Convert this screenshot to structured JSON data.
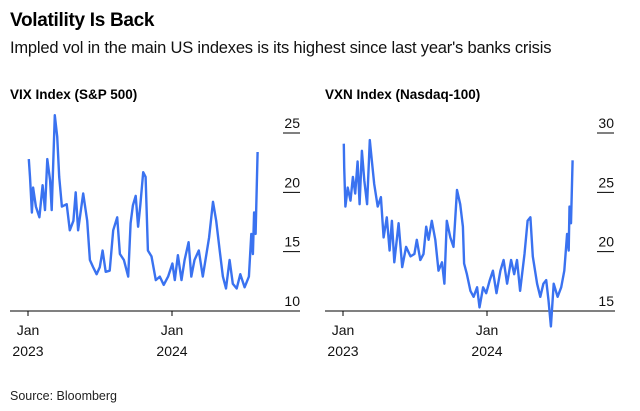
{
  "title": "Volatility Is Back",
  "subtitle": "Impled vol in the main US indexes is its highest since last year's banks crisis",
  "source": "Source: Bloomberg",
  "colors": {
    "line": "#3a72f0",
    "axis": "#000000"
  },
  "chart_data": [
    {
      "type": "line",
      "title": "VIX Index (S&P 500)",
      "ylim": [
        10,
        25
      ],
      "yticks": [
        10,
        15,
        20,
        25
      ],
      "xticks": [
        {
          "date": "2023-01-01",
          "label1": "Jan",
          "label2": "2023"
        },
        {
          "date": "2024-01-01",
          "label1": "Jan",
          "label2": "2024"
        }
      ],
      "xlim": [
        "2022-12-01",
        "2024-10-20"
      ],
      "grid": false,
      "y_axis_side": "right",
      "points": [
        [
          "2023-01-03",
          22.8
        ],
        [
          "2023-01-06",
          21.3
        ],
        [
          "2023-01-11",
          18.3
        ],
        [
          "2023-01-14",
          20.4
        ],
        [
          "2023-01-21",
          18.8
        ],
        [
          "2023-01-30",
          17.9
        ],
        [
          "2023-02-07",
          20.6
        ],
        [
          "2023-02-13",
          18.5
        ],
        [
          "2023-02-19",
          22.8
        ],
        [
          "2023-02-26",
          21.0
        ],
        [
          "2023-03-02",
          18.5
        ],
        [
          "2023-03-10",
          26.5
        ],
        [
          "2023-03-16",
          24.7
        ],
        [
          "2023-03-21",
          21.3
        ],
        [
          "2023-03-28",
          18.8
        ],
        [
          "2023-04-09",
          19.0
        ],
        [
          "2023-04-17",
          16.8
        ],
        [
          "2023-04-26",
          17.6
        ],
        [
          "2023-05-02",
          20.0
        ],
        [
          "2023-05-08",
          16.8
        ],
        [
          "2023-05-21",
          19.9
        ],
        [
          "2023-05-31",
          17.6
        ],
        [
          "2023-06-07",
          14.3
        ],
        [
          "2023-06-15",
          13.7
        ],
        [
          "2023-06-24",
          13.1
        ],
        [
          "2023-07-02",
          13.7
        ],
        [
          "2023-07-09",
          15.1
        ],
        [
          "2023-07-17",
          13.3
        ],
        [
          "2023-07-27",
          13.4
        ],
        [
          "2023-08-05",
          16.8
        ],
        [
          "2023-08-15",
          17.9
        ],
        [
          "2023-08-22",
          14.8
        ],
        [
          "2023-09-01",
          14.3
        ],
        [
          "2023-09-12",
          12.9
        ],
        [
          "2023-09-18",
          17.4
        ],
        [
          "2023-09-24",
          18.9
        ],
        [
          "2023-10-01",
          19.7
        ],
        [
          "2023-10-07",
          17.1
        ],
        [
          "2023-10-13",
          19.0
        ],
        [
          "2023-10-20",
          21.7
        ],
        [
          "2023-10-26",
          21.3
        ],
        [
          "2023-11-01",
          15.1
        ],
        [
          "2023-11-10",
          14.6
        ],
        [
          "2023-11-21",
          12.6
        ],
        [
          "2023-12-01",
          12.9
        ],
        [
          "2023-12-11",
          12.2
        ],
        [
          "2023-12-22",
          12.9
        ],
        [
          "2024-01-02",
          14.0
        ],
        [
          "2024-01-08",
          12.6
        ],
        [
          "2024-01-16",
          14.7
        ],
        [
          "2024-01-25",
          12.6
        ],
        [
          "2024-02-02",
          14.3
        ],
        [
          "2024-02-12",
          15.8
        ],
        [
          "2024-02-19",
          12.9
        ],
        [
          "2024-02-27",
          14.3
        ],
        [
          "2024-03-09",
          15.1
        ],
        [
          "2024-03-19",
          12.9
        ],
        [
          "2024-04-04",
          16.2
        ],
        [
          "2024-04-14",
          19.2
        ],
        [
          "2024-04-22",
          17.6
        ],
        [
          "2024-05-01",
          15.1
        ],
        [
          "2024-05-09",
          12.9
        ],
        [
          "2024-05-17",
          11.9
        ],
        [
          "2024-05-26",
          14.3
        ],
        [
          "2024-06-03",
          12.3
        ],
        [
          "2024-06-13",
          11.9
        ],
        [
          "2024-06-22",
          13.1
        ],
        [
          "2024-07-03",
          12.0
        ],
        [
          "2024-07-14",
          12.9
        ],
        [
          "2024-07-20",
          16.5
        ],
        [
          "2024-07-24",
          14.8
        ],
        [
          "2024-07-27",
          18.3
        ],
        [
          "2024-07-31",
          16.5
        ],
        [
          "2024-08-05",
          23.4
        ]
      ]
    },
    {
      "type": "line",
      "title": "VXN Index (Nasdaq-100)",
      "ylim": [
        15,
        30
      ],
      "yticks": [
        15,
        20,
        25,
        30
      ],
      "xticks": [
        {
          "date": "2023-01-01",
          "label1": "Jan",
          "label2": "2023"
        },
        {
          "date": "2024-01-01",
          "label1": "Jan",
          "label2": "2024"
        }
      ],
      "xlim": [
        "2022-12-01",
        "2024-10-20"
      ],
      "grid": false,
      "y_axis_side": "right",
      "points": [
        [
          "2023-01-03",
          29.1
        ],
        [
          "2023-01-04",
          27.1
        ],
        [
          "2023-01-07",
          23.8
        ],
        [
          "2023-01-13",
          25.4
        ],
        [
          "2023-01-20",
          24.3
        ],
        [
          "2023-01-26",
          26.3
        ],
        [
          "2023-02-01",
          24.9
        ],
        [
          "2023-02-07",
          27.6
        ],
        [
          "2023-02-12",
          24.0
        ],
        [
          "2023-02-18",
          28.5
        ],
        [
          "2023-02-24",
          26.0
        ],
        [
          "2023-03-03",
          24.0
        ],
        [
          "2023-03-10",
          29.4
        ],
        [
          "2023-03-15",
          27.7
        ],
        [
          "2023-03-21",
          25.7
        ],
        [
          "2023-03-30",
          23.8
        ],
        [
          "2023-04-07",
          24.6
        ],
        [
          "2023-04-14",
          21.2
        ],
        [
          "2023-04-22",
          22.9
        ],
        [
          "2023-04-29",
          20.1
        ],
        [
          "2023-05-05",
          22.6
        ],
        [
          "2023-05-11",
          19.1
        ],
        [
          "2023-05-22",
          22.4
        ],
        [
          "2023-05-31",
          18.7
        ],
        [
          "2023-06-10",
          20.4
        ],
        [
          "2023-06-21",
          19.6
        ],
        [
          "2023-07-01",
          19.8
        ],
        [
          "2023-07-07",
          21.0
        ],
        [
          "2023-07-16",
          19.3
        ],
        [
          "2023-07-24",
          19.8
        ],
        [
          "2023-07-31",
          22.1
        ],
        [
          "2023-08-06",
          21.0
        ],
        [
          "2023-08-14",
          22.6
        ],
        [
          "2023-08-23",
          21.0
        ],
        [
          "2023-08-31",
          18.4
        ],
        [
          "2023-09-09",
          19.1
        ],
        [
          "2023-09-15",
          17.3
        ],
        [
          "2023-09-21",
          22.6
        ],
        [
          "2023-09-30",
          21.2
        ],
        [
          "2023-10-08",
          20.4
        ],
        [
          "2023-10-17",
          25.2
        ],
        [
          "2023-10-25",
          24.0
        ],
        [
          "2023-11-01",
          22.1
        ],
        [
          "2023-11-04",
          19.0
        ],
        [
          "2023-11-11",
          18.1
        ],
        [
          "2023-11-20",
          16.7
        ],
        [
          "2023-11-28",
          16.2
        ],
        [
          "2023-12-07",
          17.0
        ],
        [
          "2023-12-13",
          15.3
        ],
        [
          "2023-12-22",
          17.0
        ],
        [
          "2023-12-30",
          16.5
        ],
        [
          "2024-01-08",
          17.6
        ],
        [
          "2024-01-16",
          18.4
        ],
        [
          "2024-01-25",
          16.5
        ],
        [
          "2024-02-04",
          18.4
        ],
        [
          "2024-02-12",
          19.3
        ],
        [
          "2024-02-21",
          17.3
        ],
        [
          "2024-03-02",
          19.3
        ],
        [
          "2024-03-10",
          18.1
        ],
        [
          "2024-03-17",
          19.3
        ],
        [
          "2024-03-25",
          16.7
        ],
        [
          "2024-04-05",
          19.8
        ],
        [
          "2024-04-13",
          22.6
        ],
        [
          "2024-04-20",
          22.9
        ],
        [
          "2024-04-26",
          19.6
        ],
        [
          "2024-05-07",
          17.3
        ],
        [
          "2024-05-15",
          16.2
        ],
        [
          "2024-05-23",
          17.3
        ],
        [
          "2024-05-30",
          17.6
        ],
        [
          "2024-06-05",
          15.9
        ],
        [
          "2024-06-11",
          13.7
        ],
        [
          "2024-06-18",
          17.3
        ],
        [
          "2024-06-28",
          16.2
        ],
        [
          "2024-07-07",
          17.0
        ],
        [
          "2024-07-15",
          18.4
        ],
        [
          "2024-07-22",
          21.5
        ],
        [
          "2024-07-26",
          20.1
        ],
        [
          "2024-07-28",
          23.8
        ],
        [
          "2024-08-01",
          22.4
        ],
        [
          "2024-08-05",
          27.7
        ]
      ]
    }
  ]
}
